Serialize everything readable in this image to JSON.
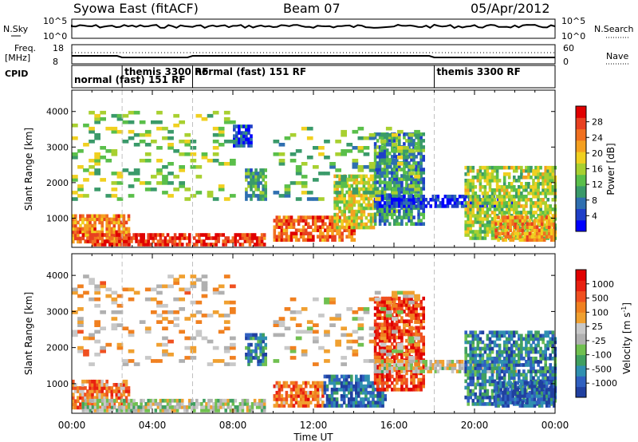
{
  "header": {
    "station": "Syowa East (fitACF)",
    "beam": "Beam 07",
    "date": "05/Apr/2012"
  },
  "housekeeping": {
    "nsky_label": "N.Sky",
    "nsearch_label": "N.Search",
    "freq_label_1": "Freq.",
    "freq_label_2": "[MHz]",
    "nave_label": "Nave",
    "cpid_label": "CPID",
    "noise_ticks": [
      "10^5",
      "10^0"
    ],
    "freq_ticks": [
      "18",
      "8"
    ],
    "nave_ticks": [
      "60",
      "0"
    ],
    "cpid_segments": [
      {
        "label": "normal (fast) 151 RF",
        "start_h": 0.0,
        "end_h": 2.5,
        "row": "low"
      },
      {
        "label": "themis 3300 RF",
        "start_h": 2.5,
        "end_h": 6.0,
        "row": "high"
      },
      {
        "label": "normal (fast) 151 RF",
        "start_h": 6.0,
        "end_h": 18.0,
        "row": "high"
      },
      {
        "label": "themis 3300 RF",
        "start_h": 18.0,
        "end_h": 24.0,
        "row": "high"
      }
    ]
  },
  "chart_data": [
    {
      "type": "heatmap",
      "name": "power",
      "ylabel": "Slant Range [km]",
      "xlabel": "",
      "xlim": [
        0,
        24
      ],
      "ylim": [
        180,
        4600
      ],
      "yticks": [
        1000,
        2000,
        3000,
        4000
      ],
      "xticks": [
        "00:00",
        "04:00",
        "08:00",
        "12:00",
        "16:00",
        "20:00",
        "00:00"
      ],
      "colorbar": {
        "label": "Power [dB]",
        "ticks": [
          "28",
          "24",
          "20",
          "16",
          "12",
          "8",
          "4"
        ],
        "colors": [
          "#0000ff",
          "#1f3fc8",
          "#2f6fb0",
          "#3a9a6a",
          "#5abf4a",
          "#a8d030",
          "#f0d020",
          "#f5a020",
          "#f07020",
          "#e84020",
          "#e00000"
        ]
      },
      "regions": [
        {
          "t0": 0.0,
          "t1": 2.8,
          "r0": 300,
          "r1": 1100,
          "level": 0.75
        },
        {
          "t0": 0.5,
          "t1": 9.5,
          "r0": 220,
          "r1": 520,
          "level": 0.9
        },
        {
          "t0": 8.0,
          "t1": 8.9,
          "r0": 3000,
          "r1": 3600,
          "level": 0.15
        },
        {
          "t0": 8.6,
          "t1": 9.6,
          "r0": 1500,
          "r1": 2400,
          "level": 0.35
        },
        {
          "t0": 10.0,
          "t1": 14.0,
          "r0": 350,
          "r1": 1000,
          "level": 0.8
        },
        {
          "t0": 13.0,
          "t1": 15.0,
          "r0": 700,
          "r1": 2200,
          "level": 0.55
        },
        {
          "t0": 15.0,
          "t1": 17.5,
          "r0": 800,
          "r1": 3400,
          "level": 0.3
        },
        {
          "t0": 15.0,
          "t1": 22.0,
          "r0": 1300,
          "r1": 1600,
          "level": 0.1
        },
        {
          "t0": 19.5,
          "t1": 24.0,
          "r0": 400,
          "r1": 2400,
          "level": 0.5
        },
        {
          "t0": 21.0,
          "t1": 24.0,
          "r0": 350,
          "r1": 1000,
          "level": 0.7
        },
        {
          "t0": 0.0,
          "t1": 8.0,
          "r0": 1500,
          "r1": 4000,
          "level": 0.45,
          "sparse": true
        },
        {
          "t0": 10.0,
          "t1": 17.0,
          "r0": 1500,
          "r1": 3500,
          "level": 0.4,
          "sparse": true
        }
      ]
    },
    {
      "type": "heatmap",
      "name": "velocity",
      "ylabel": "Slant Range [km]",
      "xlabel": "Time UT",
      "xlim": [
        0,
        24
      ],
      "ylim": [
        180,
        4600
      ],
      "yticks": [
        1000,
        2000,
        3000,
        4000
      ],
      "xticks": [
        "00:00",
        "04:00",
        "08:00",
        "12:00",
        "16:00",
        "20:00",
        "00:00"
      ],
      "colorbar": {
        "label": "Velocity [m s-1]",
        "ticks": [
          "1000",
          "500",
          "100",
          "25",
          "-25",
          "-100",
          "-500",
          "-1000"
        ],
        "colors": [
          "#2040a0",
          "#3060c0",
          "#3090b0",
          "#40a060",
          "#70c050",
          "#b0b0b0",
          "#c8c8c8",
          "#f0a030",
          "#f08020",
          "#f05020",
          "#e82010",
          "#e00000"
        ]
      },
      "regions": [
        {
          "t0": 0.0,
          "t1": 2.8,
          "r0": 300,
          "r1": 1100,
          "level": 0.7
        },
        {
          "t0": 0.5,
          "t1": 9.5,
          "r0": 220,
          "r1": 520,
          "level": 0.45
        },
        {
          "t0": 8.6,
          "t1": 9.6,
          "r0": 1500,
          "r1": 2400,
          "level": 0.2
        },
        {
          "t0": 10.0,
          "t1": 12.5,
          "r0": 350,
          "r1": 1000,
          "level": 0.75
        },
        {
          "t0": 12.5,
          "t1": 15.5,
          "r0": 350,
          "r1": 1200,
          "level": 0.15
        },
        {
          "t0": 15.0,
          "t1": 17.5,
          "r0": 800,
          "r1": 3400,
          "level": 0.85
        },
        {
          "t0": 15.0,
          "t1": 22.0,
          "r0": 1300,
          "r1": 1600,
          "level": 0.5
        },
        {
          "t0": 19.5,
          "t1": 24.0,
          "r0": 400,
          "r1": 2400,
          "level": 0.2
        },
        {
          "t0": 21.0,
          "t1": 24.0,
          "r0": 350,
          "r1": 1000,
          "level": 0.1
        },
        {
          "t0": 0.0,
          "t1": 8.0,
          "r0": 1500,
          "r1": 4000,
          "level": 0.6,
          "sparse": true
        },
        {
          "t0": 10.0,
          "t1": 17.0,
          "r0": 1500,
          "r1": 3500,
          "level": 0.55,
          "sparse": true
        }
      ]
    }
  ]
}
